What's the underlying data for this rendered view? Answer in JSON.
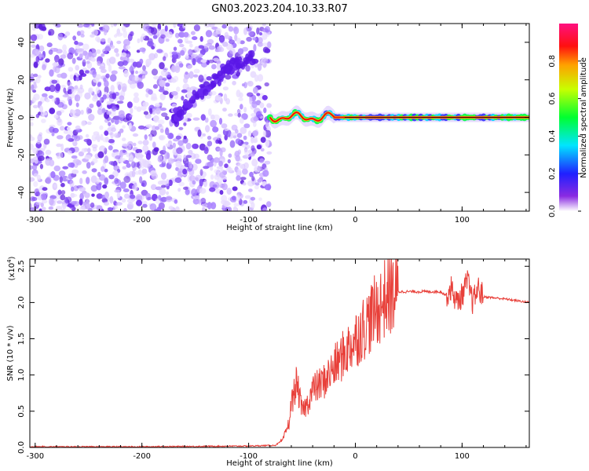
{
  "title": "GN03.2023.204.10.33.R07",
  "chart_data": [
    {
      "type": "heatmap",
      "xlabel": "Height of straight line (km)",
      "ylabel": "Frequency (Hz)",
      "xlim": [
        -305,
        163
      ],
      "ylim": [
        -50,
        50
      ],
      "xticks": [
        -300,
        -200,
        -100,
        0,
        100
      ],
      "yticks": [
        -40,
        -20,
        0,
        20,
        40
      ],
      "colorbar": {
        "label": "Normalized spectral amplitude",
        "range": [
          0,
          1
        ],
        "ticks": [
          "0.0",
          "0.2",
          "0.4",
          "0.6",
          "0.8"
        ]
      },
      "features": [
        {
          "region": "noise",
          "x_range": [
            -305,
            -80
          ],
          "freq_range": [
            -50,
            50
          ]
        },
        {
          "region": "drift-streak",
          "points": [
            [
              -170,
              -2
            ],
            [
              -155,
              8
            ],
            [
              -135,
              18
            ],
            [
              -115,
              28
            ],
            [
              -95,
              32
            ]
          ]
        },
        {
          "region": "tone-line",
          "x_range": [
            -80,
            163
          ],
          "frequency_hz": 0
        }
      ]
    },
    {
      "type": "line",
      "xlabel": "Height of straight line (km)",
      "ylabel": "SNR (10 * v/v)",
      "exponent_label": "(x10",
      "exponent_sup": "4",
      "exponent_close": ")",
      "xlim": [
        -305,
        163
      ],
      "ylim": [
        0,
        2.6
      ],
      "xticks": [
        -300,
        -200,
        -100,
        0,
        100
      ],
      "yticks": [
        "0.0",
        "0.5",
        "1.0",
        "1.5",
        "2.0",
        "2.5"
      ],
      "color": "#e8403a",
      "series": [
        {
          "x": [
            -305,
            -200,
            -100,
            -75,
            -68,
            -62,
            -60,
            -55,
            -50,
            -45,
            -40,
            -30,
            -20,
            -10,
            0,
            10,
            20,
            30,
            40,
            60,
            80,
            85,
            90,
            95,
            100,
            105,
            110,
            115,
            120,
            140,
            163
          ],
          "values": [
            0.01,
            0.01,
            0.02,
            0.03,
            0.1,
            0.35,
            0.6,
            0.9,
            0.5,
            0.6,
            0.8,
            0.9,
            1.1,
            1.3,
            1.5,
            1.7,
            1.9,
            2.1,
            2.15,
            2.15,
            2.15,
            2.1,
            2.2,
            2.0,
            2.1,
            2.3,
            2.0,
            2.2,
            2.08,
            2.05,
            2.0
          ]
        }
      ]
    }
  ]
}
